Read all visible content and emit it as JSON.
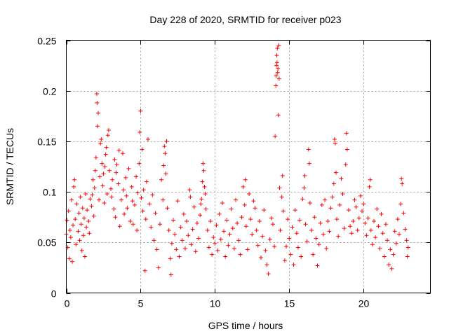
{
  "chart_data": {
    "type": "scatter",
    "title": "Day 228 of 2020, SRMTID for receiver p023",
    "xlabel": "GPS time / hours",
    "ylabel": "SRMTID / TECUs",
    "xlim": [
      0,
      24.5
    ],
    "ylim": [
      0,
      0.25
    ],
    "x_ticks": [
      0,
      5,
      10,
      15,
      20
    ],
    "x_tick_labels": [
      "0",
      "5",
      "10",
      "15",
      "20"
    ],
    "y_ticks": [
      0,
      0.05,
      0.1,
      0.15,
      0.2,
      0.25
    ],
    "y_tick_labels": [
      "0",
      "0.05",
      "0.1",
      "0.15",
      "0.2",
      "0.25"
    ],
    "grid": true,
    "marker": "+",
    "color": "#ff0000",
    "series": [
      {
        "name": "SRMTID",
        "points": [
          [
            0.0,
            0.058
          ],
          [
            0.05,
            0.072
          ],
          [
            0.1,
            0.045
          ],
          [
            0.15,
            0.081
          ],
          [
            0.2,
            0.034
          ],
          [
            0.25,
            0.062
          ],
          [
            0.3,
            0.055
          ],
          [
            0.35,
            0.092
          ],
          [
            0.4,
            0.031
          ],
          [
            0.45,
            0.067
          ],
          [
            0.5,
            0.105
          ],
          [
            0.55,
            0.112
          ],
          [
            0.6,
            0.073
          ],
          [
            0.65,
            0.048
          ],
          [
            0.7,
            0.088
          ],
          [
            0.8,
            0.061
          ],
          [
            0.85,
            0.079
          ],
          [
            0.9,
            0.052
          ],
          [
            0.95,
            0.095
          ],
          [
            1.0,
            0.068
          ],
          [
            1.05,
            0.042
          ],
          [
            1.1,
            0.084
          ],
          [
            1.15,
            0.057
          ],
          [
            1.2,
            0.074
          ],
          [
            1.25,
            0.036
          ],
          [
            1.3,
            0.098
          ],
          [
            1.35,
            0.065
          ],
          [
            1.4,
            0.082
          ],
          [
            1.5,
            0.071
          ],
          [
            1.55,
            0.059
          ],
          [
            1.6,
            0.093
          ],
          [
            1.7,
            0.086
          ],
          [
            1.75,
            0.097
          ],
          [
            1.8,
            0.112
          ],
          [
            1.85,
            0.076
          ],
          [
            1.9,
            0.104
          ],
          [
            1.95,
            0.121
          ],
          [
            2.0,
            0.134
          ],
          [
            2.05,
            0.197
          ],
          [
            2.07,
            0.188
          ],
          [
            2.1,
            0.165
          ],
          [
            2.15,
            0.178
          ],
          [
            2.2,
            0.092
          ],
          [
            2.25,
            0.115
          ],
          [
            2.3,
            0.148
          ],
          [
            2.35,
            0.152
          ],
          [
            2.4,
            0.128
          ],
          [
            2.45,
            0.106
          ],
          [
            2.5,
            0.118
          ],
          [
            2.55,
            0.089
          ],
          [
            2.6,
            0.125
          ],
          [
            2.65,
            0.137
          ],
          [
            2.7,
            0.144
          ],
          [
            2.75,
            0.098
          ],
          [
            2.8,
            0.156
          ],
          [
            2.85,
            0.161
          ],
          [
            2.9,
            0.121
          ],
          [
            3.0,
            0.103
          ],
          [
            3.05,
            0.095
          ],
          [
            3.1,
            0.112
          ],
          [
            3.2,
            0.083
          ],
          [
            3.25,
            0.132
          ],
          [
            3.3,
            0.075
          ],
          [
            3.35,
            0.119
          ],
          [
            3.4,
            0.127
          ],
          [
            3.5,
            0.108
          ],
          [
            3.55,
            0.141
          ],
          [
            3.6,
            0.066
          ],
          [
            3.7,
            0.092
          ],
          [
            3.8,
            0.138
          ],
          [
            3.85,
            0.102
          ],
          [
            3.9,
            0.078
          ],
          [
            4.0,
            0.114
          ],
          [
            4.05,
            0.096
          ],
          [
            4.1,
            0.084
          ],
          [
            4.2,
            0.123
          ],
          [
            4.3,
            0.071
          ],
          [
            4.4,
            0.105
          ],
          [
            4.45,
            0.091
          ],
          [
            4.5,
            0.068
          ],
          [
            4.6,
            0.087
          ],
          [
            4.7,
            0.115
          ],
          [
            4.75,
            0.062
          ],
          [
            4.8,
            0.099
          ],
          [
            4.9,
            0.128
          ],
          [
            4.95,
            0.159
          ],
          [
            5.0,
            0.18
          ],
          [
            5.05,
            0.094
          ],
          [
            5.1,
            0.142
          ],
          [
            5.15,
            0.081
          ],
          [
            5.2,
            0.102
          ],
          [
            5.3,
            0.022
          ],
          [
            5.35,
            0.073
          ],
          [
            5.4,
            0.11
          ],
          [
            5.5,
            0.152
          ],
          [
            5.6,
            0.088
          ],
          [
            5.7,
            0.065
          ],
          [
            5.8,
            0.097
          ],
          [
            5.9,
            0.052
          ],
          [
            6.0,
            0.079
          ],
          [
            6.1,
            0.043
          ],
          [
            6.2,
            0.025
          ],
          [
            6.3,
            0.068
          ],
          [
            6.4,
            0.112
          ],
          [
            6.5,
            0.092
          ],
          [
            6.55,
            0.126
          ],
          [
            6.6,
            0.145
          ],
          [
            6.65,
            0.138
          ],
          [
            6.7,
            0.118
          ],
          [
            6.75,
            0.15
          ],
          [
            6.8,
            0.084
          ],
          [
            6.9,
            0.062
          ],
          [
            7.0,
            0.034
          ],
          [
            7.05,
            0.018
          ],
          [
            7.1,
            0.049
          ],
          [
            7.2,
            0.072
          ],
          [
            7.3,
            0.058
          ],
          [
            7.4,
            0.043
          ],
          [
            7.5,
            0.091
          ],
          [
            7.6,
            0.036
          ],
          [
            7.7,
            0.065
          ],
          [
            7.8,
            0.052
          ],
          [
            7.9,
            0.078
          ],
          [
            8.0,
            0.044
          ],
          [
            8.1,
            0.071
          ],
          [
            8.2,
            0.057
          ],
          [
            8.3,
            0.102
          ],
          [
            8.35,
            0.095
          ],
          [
            8.4,
            0.048
          ],
          [
            8.5,
            0.063
          ],
          [
            8.6,
            0.085
          ],
          [
            8.7,
            0.041
          ],
          [
            8.8,
            0.069
          ],
          [
            8.9,
            0.054
          ],
          [
            9.0,
            0.077
          ],
          [
            9.05,
            0.088
          ],
          [
            9.1,
            0.093
          ],
          [
            9.15,
            0.11
          ],
          [
            9.2,
            0.128
          ],
          [
            9.25,
            0.121
          ],
          [
            9.3,
            0.105
          ],
          [
            9.35,
            0.098
          ],
          [
            9.4,
            0.083
          ],
          [
            9.5,
            0.062
          ],
          [
            9.6,
            0.045
          ],
          [
            9.7,
            0.071
          ],
          [
            9.8,
            0.038
          ],
          [
            9.9,
            0.055
          ],
          [
            10.0,
            0.049
          ],
          [
            10.1,
            0.067
          ],
          [
            10.2,
            0.042
          ],
          [
            10.3,
            0.078
          ],
          [
            10.4,
            0.053
          ],
          [
            10.5,
            0.089
          ],
          [
            10.6,
            0.061
          ],
          [
            10.7,
            0.036
          ],
          [
            10.8,
            0.072
          ],
          [
            10.9,
            0.047
          ],
          [
            11.0,
            0.058
          ],
          [
            11.1,
            0.083
          ],
          [
            11.2,
            0.064
          ],
          [
            11.3,
            0.044
          ],
          [
            11.4,
            0.092
          ],
          [
            11.5,
            0.069
          ],
          [
            11.6,
            0.052
          ],
          [
            11.7,
            0.038
          ],
          [
            11.8,
            0.075
          ],
          [
            11.9,
            0.105
          ],
          [
            12.0,
            0.087
          ],
          [
            12.05,
            0.112
          ],
          [
            12.1,
            0.066
          ],
          [
            12.2,
            0.043
          ],
          [
            12.3,
            0.098
          ],
          [
            12.4,
            0.073
          ],
          [
            12.5,
            0.058
          ],
          [
            12.6,
            0.091
          ],
          [
            12.7,
            0.084
          ],
          [
            12.8,
            0.062
          ],
          [
            12.9,
            0.047
          ],
          [
            13.0,
            0.071
          ],
          [
            13.1,
            0.035
          ],
          [
            13.2,
            0.056
          ],
          [
            13.3,
            0.082
          ],
          [
            13.4,
            0.042
          ],
          [
            13.5,
            0.028
          ],
          [
            13.6,
            0.019
          ],
          [
            13.7,
            0.053
          ],
          [
            13.8,
            0.074
          ],
          [
            13.9,
            0.068
          ],
          [
            14.0,
            0.046
          ],
          [
            14.05,
            0.155
          ],
          [
            14.1,
            0.205
          ],
          [
            14.12,
            0.215
          ],
          [
            14.14,
            0.225
          ],
          [
            14.16,
            0.235
          ],
          [
            14.18,
            0.228
          ],
          [
            14.2,
            0.242
          ],
          [
            14.22,
            0.218
          ],
          [
            14.24,
            0.222
          ],
          [
            14.26,
            0.176
          ],
          [
            14.3,
            0.245
          ],
          [
            14.32,
            0.212
          ],
          [
            14.35,
            0.104
          ],
          [
            14.4,
            0.062
          ],
          [
            14.5,
            0.095
          ],
          [
            14.55,
            0.116
          ],
          [
            14.6,
            0.081
          ],
          [
            14.7,
            0.032
          ],
          [
            14.8,
            0.046
          ],
          [
            14.9,
            0.073
          ],
          [
            15.0,
            0.054
          ],
          [
            15.1,
            0.038
          ],
          [
            15.2,
            0.065
          ],
          [
            15.3,
            0.028
          ],
          [
            15.4,
            0.082
          ],
          [
            15.5,
            0.059
          ],
          [
            15.6,
            0.045
          ],
          [
            15.7,
            0.072
          ],
          [
            15.8,
            0.036
          ],
          [
            15.9,
            0.093
          ],
          [
            16.0,
            0.104
          ],
          [
            16.05,
            0.116
          ],
          [
            16.1,
            0.068
          ],
          [
            16.2,
            0.051
          ],
          [
            16.3,
            0.142
          ],
          [
            16.35,
            0.128
          ],
          [
            16.4,
            0.089
          ],
          [
            16.5,
            0.062
          ],
          [
            16.6,
            0.038
          ],
          [
            16.7,
            0.075
          ],
          [
            16.8,
            0.054
          ],
          [
            16.9,
            0.027
          ],
          [
            17.0,
            0.048
          ],
          [
            17.1,
            0.069
          ],
          [
            17.2,
            0.087
          ],
          [
            17.3,
            0.058
          ],
          [
            17.4,
            0.092
          ],
          [
            17.5,
            0.044
          ],
          [
            17.6,
            0.071
          ],
          [
            17.7,
            0.061
          ],
          [
            17.8,
            0.084
          ],
          [
            17.9,
            0.095
          ],
          [
            18.0,
            0.108
          ],
          [
            18.05,
            0.152
          ],
          [
            18.1,
            0.148
          ],
          [
            18.15,
            0.119
          ],
          [
            18.2,
            0.073
          ],
          [
            18.3,
            0.056
          ],
          [
            18.4,
            0.087
          ],
          [
            18.5,
            0.113
          ],
          [
            18.6,
            0.098
          ],
          [
            18.7,
            0.064
          ],
          [
            18.8,
            0.127
          ],
          [
            18.85,
            0.158
          ],
          [
            18.9,
            0.142
          ],
          [
            19.0,
            0.082
          ],
          [
            19.1,
            0.066
          ],
          [
            19.2,
            0.059
          ],
          [
            19.3,
            0.071
          ],
          [
            19.4,
            0.092
          ],
          [
            19.5,
            0.085
          ],
          [
            19.6,
            0.062
          ],
          [
            19.7,
            0.074
          ],
          [
            19.8,
            0.096
          ],
          [
            19.9,
            0.081
          ],
          [
            20.0,
            0.088
          ],
          [
            20.1,
            0.069
          ],
          [
            20.2,
            0.057
          ],
          [
            20.3,
            0.074
          ],
          [
            20.4,
            0.105
          ],
          [
            20.45,
            0.112
          ],
          [
            20.5,
            0.062
          ],
          [
            20.6,
            0.048
          ],
          [
            20.7,
            0.071
          ],
          [
            20.8,
            0.055
          ],
          [
            20.9,
            0.083
          ],
          [
            21.0,
            0.066
          ],
          [
            21.1,
            0.044
          ],
          [
            21.2,
            0.078
          ],
          [
            21.3,
            0.059
          ],
          [
            21.4,
            0.036
          ],
          [
            21.5,
            0.068
          ],
          [
            21.6,
            0.052
          ],
          [
            21.7,
            0.028
          ],
          [
            21.8,
            0.043
          ],
          [
            21.9,
            0.024
          ],
          [
            22.0,
            0.038
          ],
          [
            22.1,
            0.061
          ],
          [
            22.2,
            0.049
          ],
          [
            22.3,
            0.073
          ],
          [
            22.4,
            0.058
          ],
          [
            22.5,
            0.088
          ],
          [
            22.55,
            0.113
          ],
          [
            22.6,
            0.108
          ],
          [
            22.7,
            0.079
          ],
          [
            22.8,
            0.063
          ],
          [
            22.9,
            0.052
          ],
          [
            22.95,
            0.036
          ],
          [
            23.0,
            0.045
          ]
        ]
      }
    ]
  }
}
